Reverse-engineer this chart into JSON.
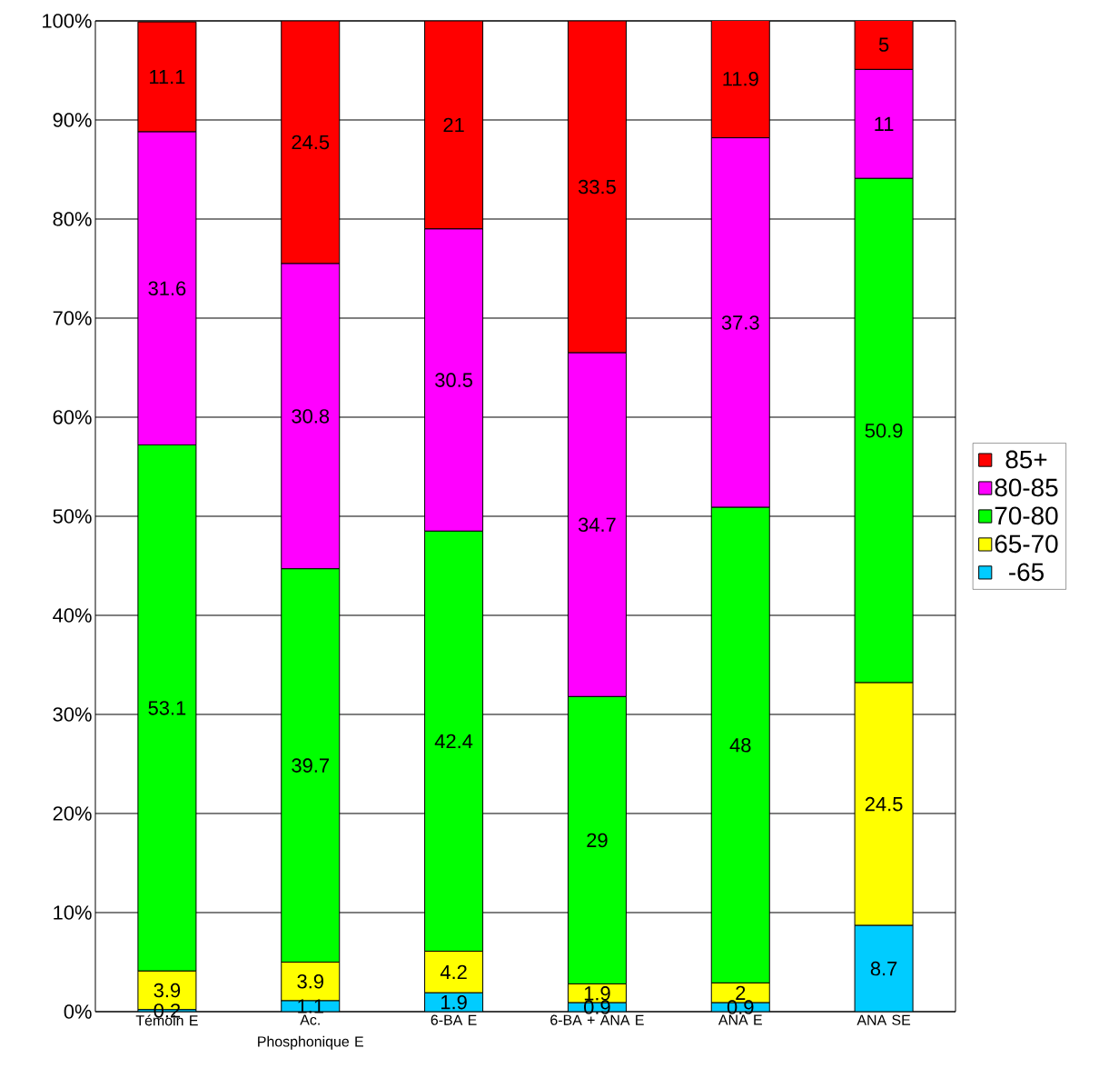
{
  "chart_data": {
    "type": "bar",
    "stacked": true,
    "data_labels": true,
    "grid": "y",
    "legend": "right",
    "categories": [
      "Témoin E",
      "Ac. Phosphonique E",
      "6-BA E",
      "6-BA + ANA E",
      "ANA E",
      "ANA SE"
    ],
    "ylim": [
      0,
      100
    ],
    "yticks": [
      {
        "value": 0,
        "label": "0%"
      },
      {
        "value": 10,
        "label": "10%"
      },
      {
        "value": 20,
        "label": "20%"
      },
      {
        "value": 30,
        "label": "30%"
      },
      {
        "value": 40,
        "label": "40%"
      },
      {
        "value": 50,
        "label": "50%"
      },
      {
        "value": 60,
        "label": "60%"
      },
      {
        "value": 70,
        "label": "70%"
      },
      {
        "value": 80,
        "label": "80%"
      },
      {
        "value": 90,
        "label": "90%"
      },
      {
        "value": 100,
        "label": "100%"
      }
    ],
    "series": [
      {
        "name": "-65",
        "color": "#00ccff",
        "values": [
          0.2,
          1.1,
          1.9,
          0.9,
          0.9,
          8.7
        ]
      },
      {
        "name": "65-70",
        "color": "#ffff00",
        "values": [
          3.9,
          3.9,
          4.2,
          1.9,
          2,
          24.5
        ]
      },
      {
        "name": "70-80",
        "color": "#00ff00",
        "values": [
          53.1,
          39.7,
          42.4,
          29,
          48,
          50.9
        ]
      },
      {
        "name": "80-85",
        "color": "#ff00ff",
        "values": [
          31.6,
          30.8,
          30.5,
          34.7,
          37.3,
          11
        ]
      },
      {
        "name": "85+",
        "color": "#ff0000",
        "values": [
          11.1,
          24.5,
          21,
          33.5,
          11.9,
          5
        ]
      }
    ]
  }
}
